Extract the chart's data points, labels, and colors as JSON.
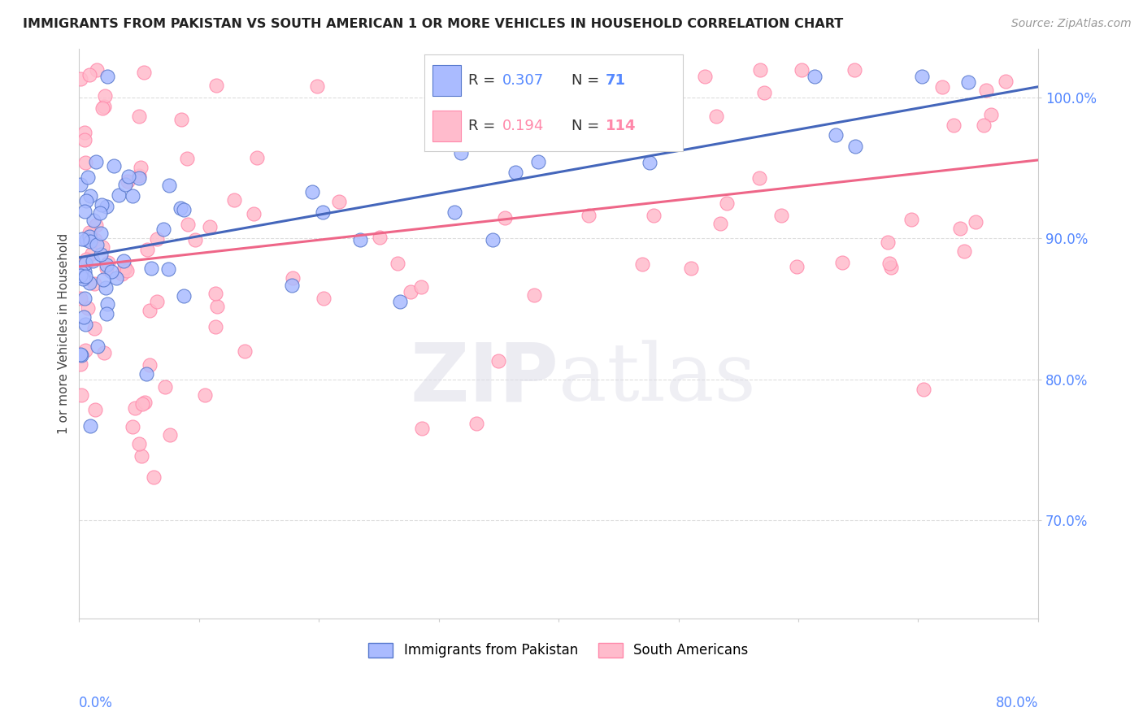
{
  "title": "IMMIGRANTS FROM PAKISTAN VS SOUTH AMERICAN 1 OR MORE VEHICLES IN HOUSEHOLD CORRELATION CHART",
  "source": "Source: ZipAtlas.com",
  "ylabel": "1 or more Vehicles in Household",
  "legend_R_pakistan": "0.307",
  "legend_N_pakistan": "71",
  "legend_R_south": "0.194",
  "legend_N_south": "114",
  "pakistan_color": "#AABBFF",
  "pakistan_edge": "#5577CC",
  "south_color": "#FFBBCC",
  "south_edge": "#FF88AA",
  "pakistan_line_color": "#4466BB",
  "south_line_color": "#EE6688",
  "x_min": 0.0,
  "x_max": 80.0,
  "y_min": 63.0,
  "y_max": 103.5,
  "axis_label_color": "#5588FF",
  "grid_color": "#DDDDDD",
  "title_color": "#222222",
  "source_color": "#999999"
}
